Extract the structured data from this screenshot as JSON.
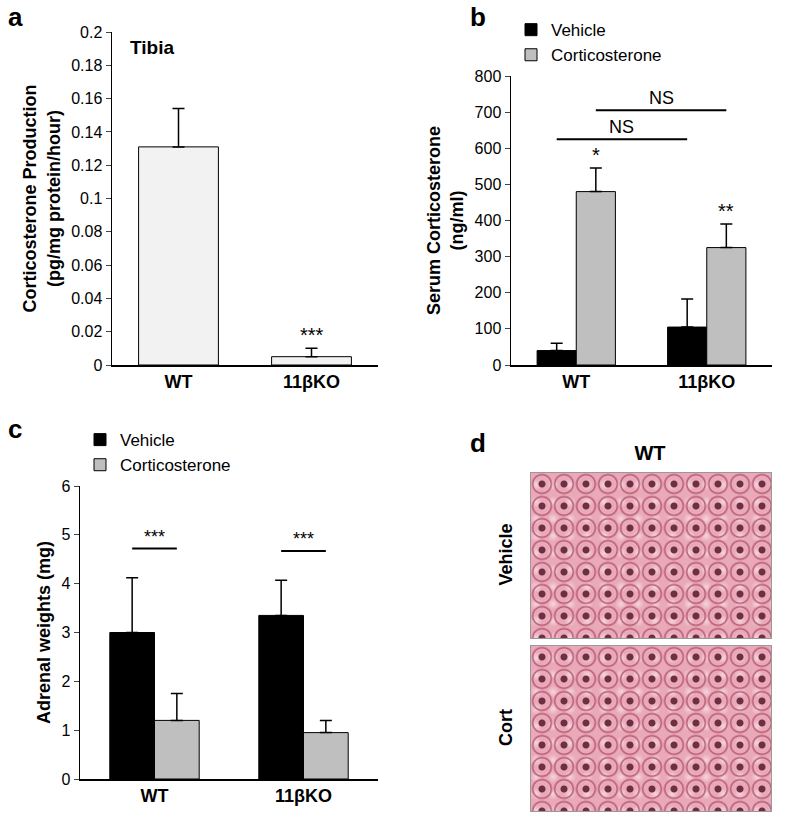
{
  "chart_data": [
    {
      "panel": "a",
      "type": "bar",
      "title": "Tibia",
      "y_label": "Corticosterone Production\n(pg/mg protein/hour)",
      "categories": [
        "WT",
        "11βKO"
      ],
      "values": [
        0.131,
        0.005
      ],
      "errors": [
        0.023,
        0.005
      ],
      "significance": [
        null,
        "***"
      ],
      "color": "#f2f2f2",
      "ylim": [
        0,
        0.2
      ],
      "yticks": [
        0,
        0.02,
        0.04,
        0.06,
        0.08,
        0.1,
        0.12,
        0.14,
        0.16,
        0.18,
        0.2
      ],
      "grid": false
    },
    {
      "panel": "b",
      "type": "bar",
      "y_label": "Serum Corticosterone\n(ng/ml)",
      "categories": [
        "WT",
        "11βKO"
      ],
      "series": [
        {
          "name": "Vehicle",
          "color": "#000000",
          "values": [
            40,
            105
          ],
          "errors": [
            20,
            78
          ]
        },
        {
          "name": "Corticosterone",
          "color": "#bfbfbf",
          "values": [
            480,
            325
          ],
          "errors": [
            65,
            65
          ],
          "significance": [
            "*",
            "**"
          ]
        }
      ],
      "comparisons": [
        {
          "between": [
            {
              "category": "WT",
              "series": "Vehicle"
            },
            {
              "category": "11βKO",
              "series": "Vehicle"
            }
          ],
          "label": "NS"
        },
        {
          "between": [
            {
              "category": "WT",
              "series": "Corticosterone"
            },
            {
              "category": "11βKO",
              "series": "Corticosterone"
            }
          ],
          "label": "NS"
        }
      ],
      "ylim": [
        0,
        800
      ],
      "yticks": [
        0,
        100,
        200,
        300,
        400,
        500,
        600,
        700,
        800
      ],
      "legend": "top left",
      "grid": false
    },
    {
      "panel": "c",
      "type": "bar",
      "y_label": "Adrenal weights (mg)",
      "categories": [
        "WT",
        "11βKO"
      ],
      "series": [
        {
          "name": "Vehicle",
          "color": "#000000",
          "values": [
            3.0,
            3.35
          ],
          "errors": [
            1.12,
            0.72
          ]
        },
        {
          "name": "Corticosterone",
          "color": "#bfbfbf",
          "values": [
            1.2,
            0.95
          ],
          "errors": [
            0.55,
            0.25
          ]
        }
      ],
      "comparisons": [
        {
          "between": [
            {
              "category": "WT",
              "series": "Vehicle"
            },
            {
              "category": "WT",
              "series": "Corticosterone"
            }
          ],
          "label": "***"
        },
        {
          "between": [
            {
              "category": "11βKO",
              "series": "Vehicle"
            },
            {
              "category": "11βKO",
              "series": "Corticosterone"
            }
          ],
          "label": "***"
        }
      ],
      "ylim": [
        0,
        6
      ],
      "yticks": [
        0,
        1,
        2,
        3,
        4,
        5,
        6
      ],
      "legend": "top left",
      "grid": false
    }
  ],
  "panel_d": {
    "panel": "d",
    "title": "WT",
    "rows": [
      "Vehicle",
      "Cort"
    ]
  }
}
